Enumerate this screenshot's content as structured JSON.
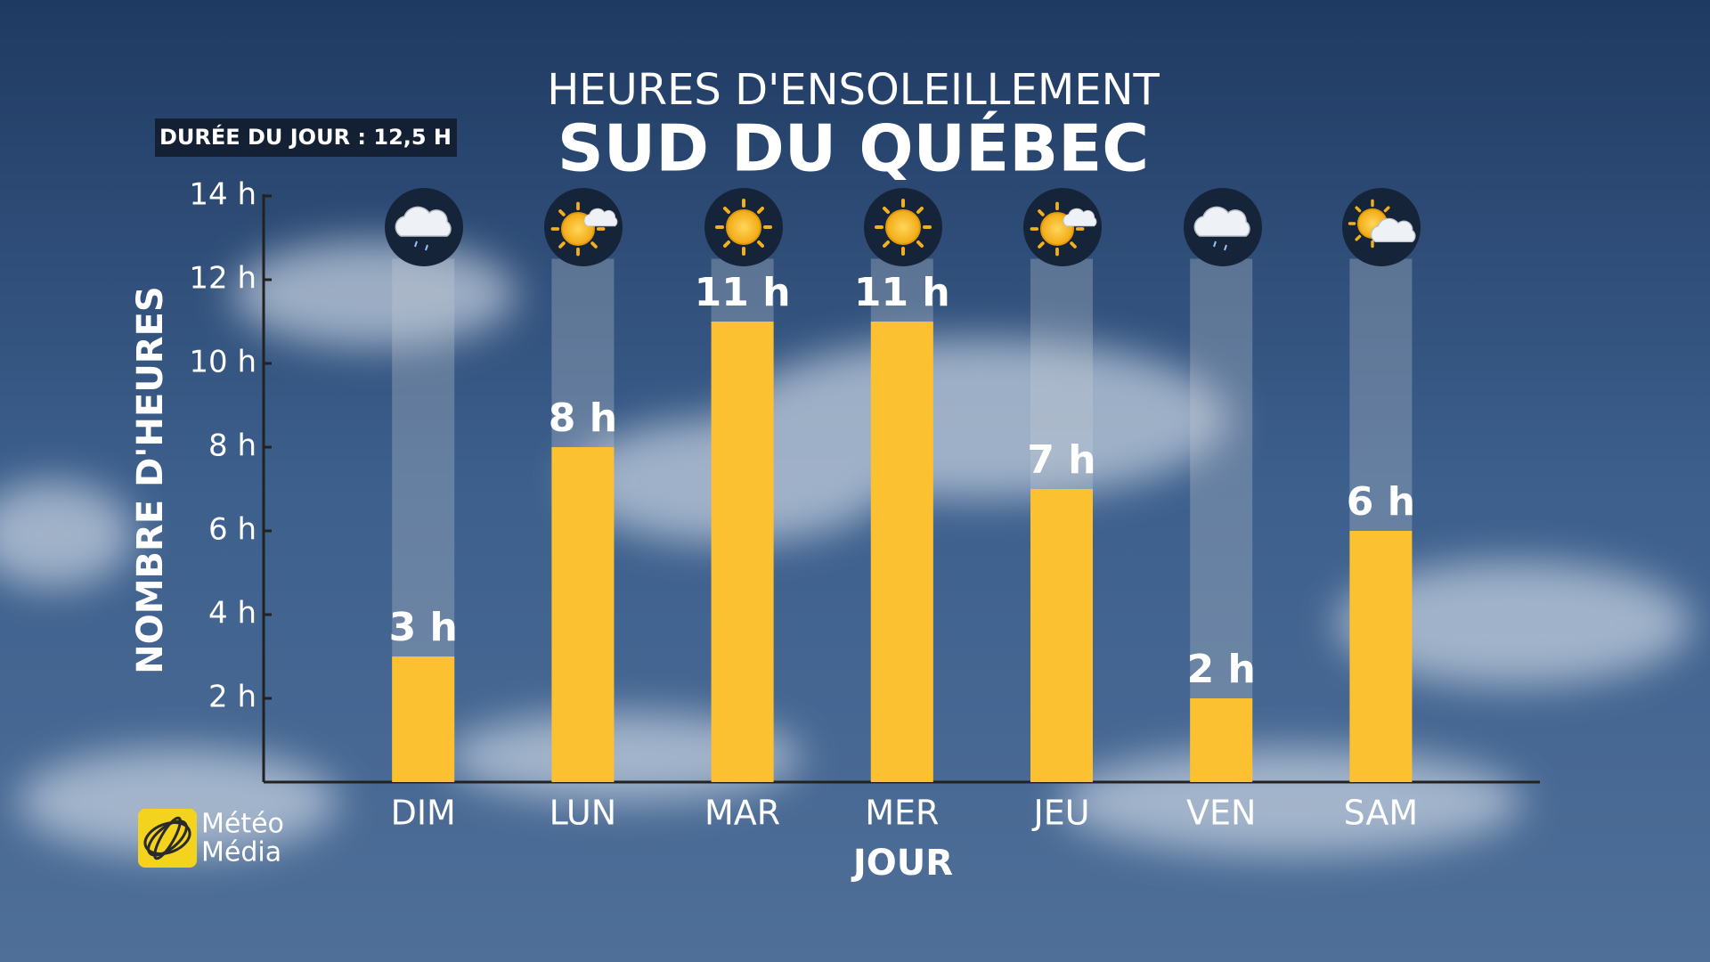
{
  "chart_data": {
    "type": "bar",
    "title": "HEURES D'ENSOLEILLEMENT",
    "subtitle": "SUD DU QUÉBEC",
    "day_length": 12.5,
    "day_length_label": "DURÉE DU JOUR : 12,5 H",
    "xlabel": "JOUR",
    "ylabel": "NOMBRE D'HEURES",
    "categories": [
      "DIM",
      "LUN",
      "MAR",
      "MER",
      "JEU",
      "VEN",
      "SAM"
    ],
    "values": [
      3,
      8,
      11,
      11,
      7,
      2,
      6
    ],
    "value_labels": [
      "3 h",
      "8 h",
      "11 h",
      "11 h",
      "7 h",
      "2 h",
      "6 h"
    ],
    "color": "#fcc131",
    "ylim": [
      0,
      14
    ],
    "yticks": [
      {
        "value": 2,
        "label": "2 h"
      },
      {
        "value": 4,
        "label": "4 h"
      },
      {
        "value": 6,
        "label": "6 h"
      },
      {
        "value": 8,
        "label": "8 h"
      },
      {
        "value": 10,
        "label": "10 h"
      },
      {
        "value": 12,
        "label": "12 h"
      },
      {
        "value": 14,
        "label": "14 h"
      }
    ],
    "logo": [
      "Météo",
      "Média"
    ]
  }
}
